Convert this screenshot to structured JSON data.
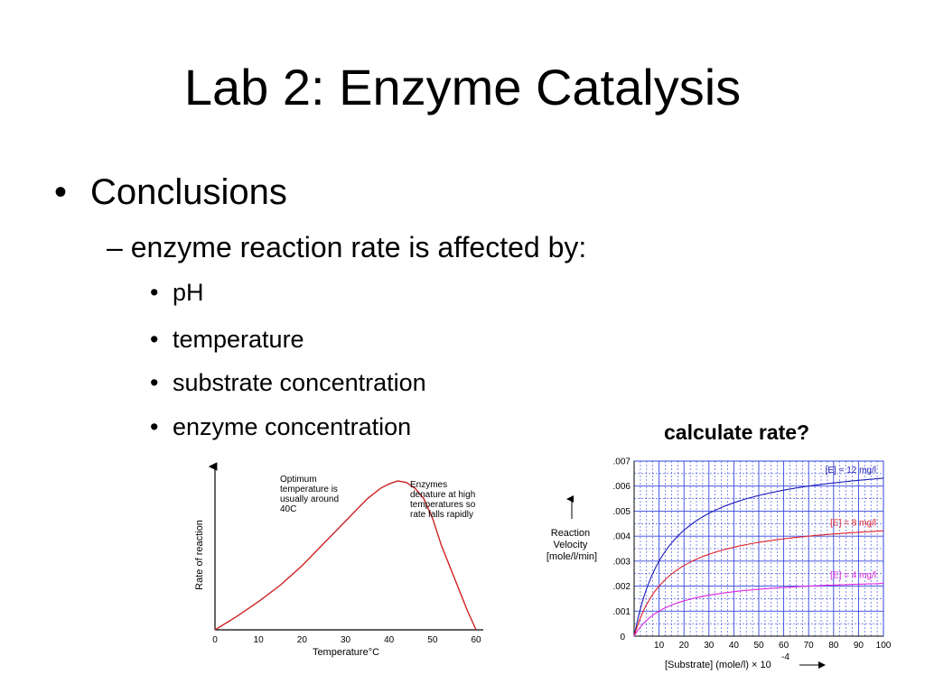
{
  "slide": {
    "title": "Lab 2: Enzyme Catalysis",
    "bullet_level1": {
      "marker": "•",
      "text": "Conclusions"
    },
    "bullet_level2": {
      "marker": "–",
      "text": "enzyme reaction rate is affected by:"
    },
    "bullet_level3": [
      {
        "marker": "•",
        "text": "pH"
      },
      {
        "marker": "•",
        "text": "temperature"
      },
      {
        "marker": "•",
        "text": "substrate concentration"
      },
      {
        "marker": "•",
        "text": "enzyme concentration"
      }
    ],
    "callout": "calculate rate?"
  },
  "chart_data": [
    {
      "type": "line",
      "xlabel": "Temperature°C",
      "ylabel": "Rate of reaction",
      "xlim": [
        0,
        60
      ],
      "x_ticks": [
        "0",
        "10",
        "20",
        "30",
        "40",
        "50",
        "60"
      ],
      "grid": false,
      "color": "#cc2222",
      "series": [
        {
          "x": [
            0,
            5,
            10,
            15,
            20,
            25,
            30,
            35,
            38,
            40,
            42,
            44,
            46,
            48,
            50,
            52,
            55,
            58,
            60
          ],
          "y": [
            0,
            0.09,
            0.19,
            0.3,
            0.43,
            0.58,
            0.73,
            0.88,
            0.95,
            0.98,
            1.0,
            0.99,
            0.95,
            0.88,
            0.75,
            0.57,
            0.35,
            0.13,
            0
          ]
        }
      ],
      "annotations": [
        {
          "lines": [
            "Optimum",
            "temperature is",
            "usually around",
            "40C"
          ]
        },
        {
          "lines": [
            "Enzymes",
            "denature at high",
            "temperatures so",
            "rate falls rapidly"
          ]
        }
      ]
    },
    {
      "type": "line",
      "ylabel_lines": [
        "Reaction",
        "Velocity",
        "[mole/l/min]"
      ],
      "xlabel": "[Substrate] (mole/l) × 10",
      "xlabel_exponent": "-4",
      "xlim": [
        0,
        100
      ],
      "ylim": [
        0,
        0.007
      ],
      "x_ticks": [
        "10",
        "20",
        "30",
        "40",
        "50",
        "60",
        "70",
        "80",
        "90",
        "100"
      ],
      "y_ticks": [
        ".001",
        ".002",
        ".003",
        ".004",
        ".005",
        ".006",
        ".007"
      ],
      "zero_label": "0",
      "grid": true,
      "grid_color": "#3344dd",
      "series": [
        {
          "name": "[E] = 12 mg/l",
          "color": "#1c1cb8",
          "vmax": 0.0072,
          "km": 14
        },
        {
          "name": "[E] = 8 mg/l",
          "color": "#e0202a",
          "vmax": 0.0048,
          "km": 14
        },
        {
          "name": "[E] = 4 mg/l",
          "color": "#dd22dd",
          "vmax": 0.0024,
          "km": 14
        }
      ]
    }
  ]
}
